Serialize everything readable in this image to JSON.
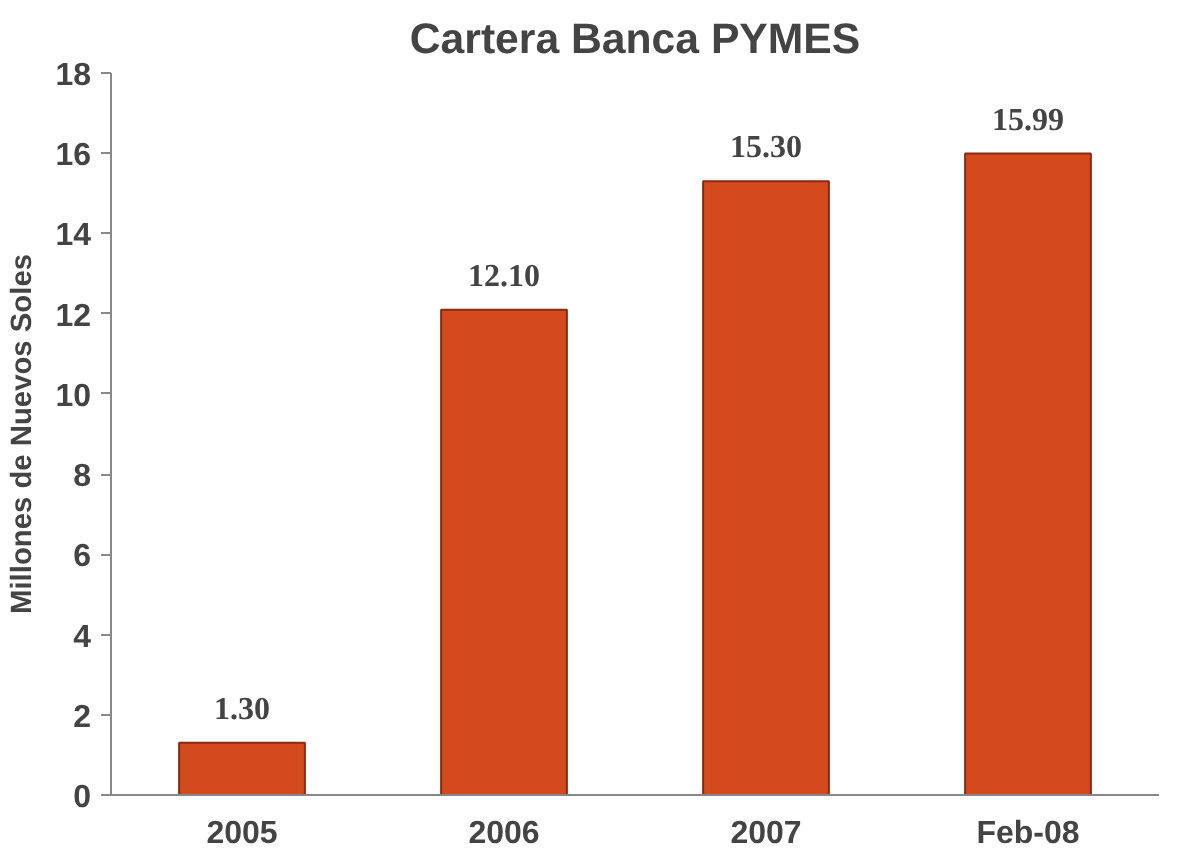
{
  "chart_data": {
    "type": "bar",
    "title": "Cartera Banca PYMES",
    "ylabel": "Millones de Nuevos Soles",
    "categories": [
      "2005",
      "2006",
      "2007",
      "Feb-08"
    ],
    "values": [
      1.3,
      12.1,
      15.3,
      15.99
    ],
    "value_labels": [
      "1.30",
      "12.10",
      "15.30",
      "15.99"
    ],
    "color": "#d24a1e",
    "ylim": [
      0,
      18
    ],
    "yticks": [
      0,
      2,
      4,
      6,
      8,
      10,
      12,
      14,
      16,
      18
    ],
    "grid": false
  }
}
